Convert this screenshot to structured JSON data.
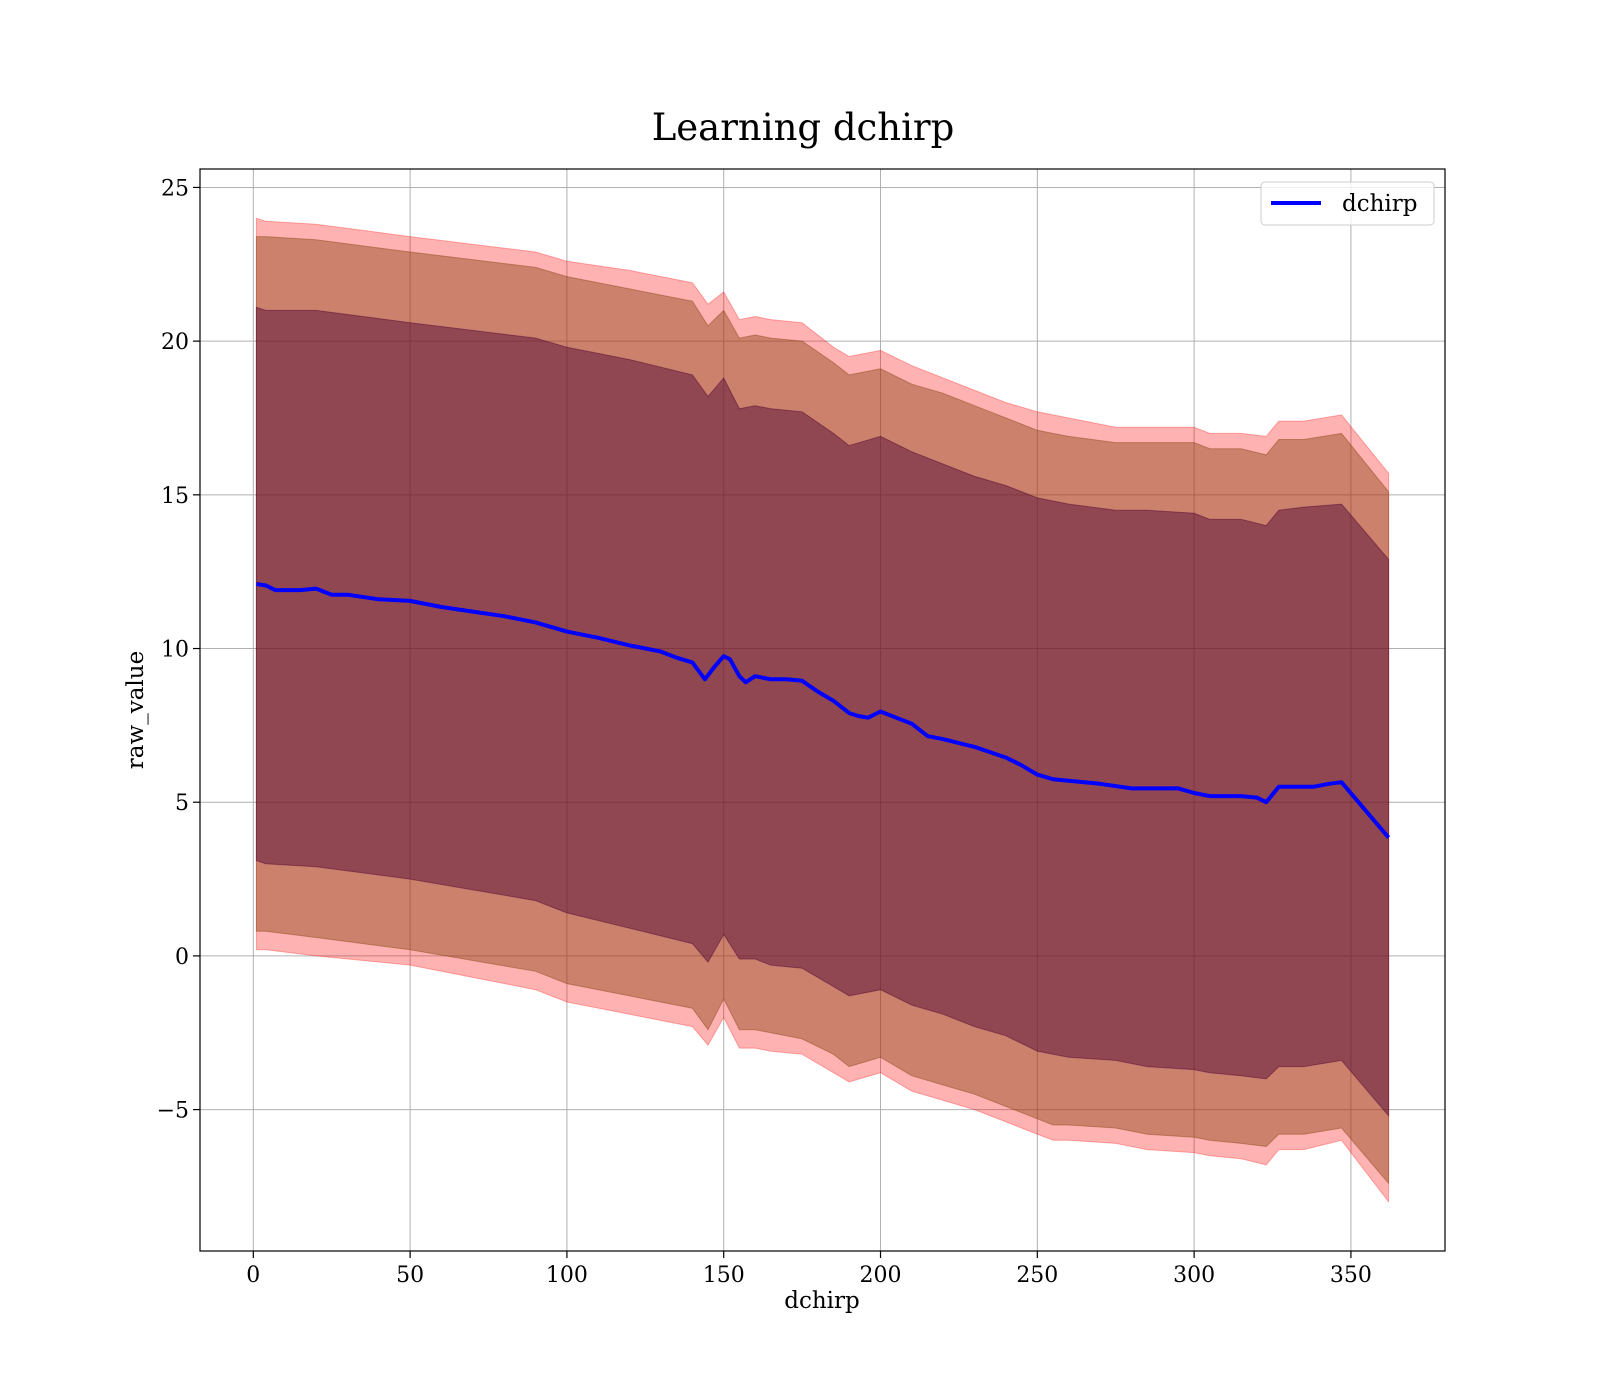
{
  "chart_data": {
    "type": "line",
    "title": "Learning dchirp",
    "xlabel": "dchirp",
    "ylabel": "raw_value",
    "xlim": [
      -17,
      380
    ],
    "ylim": [
      -9.6,
      25.6
    ],
    "x_ticks": [
      0,
      50,
      100,
      150,
      200,
      250,
      300,
      350
    ],
    "y_ticks": [
      -5,
      0,
      5,
      10,
      15,
      20,
      25
    ],
    "x_tick_labels": [
      "0",
      "50",
      "100",
      "150",
      "200",
      "250",
      "300",
      "350"
    ],
    "y_tick_labels": [
      "−5",
      "0",
      "5",
      "10",
      "15",
      "20",
      "25"
    ],
    "grid": true,
    "legend": {
      "position": "top-right",
      "entries": [
        "dchirp"
      ]
    },
    "series": [
      {
        "name": "dchirp",
        "color": "#0000ff",
        "x": [
          1,
          4,
          7,
          10,
          15,
          20,
          25,
          30,
          40,
          50,
          60,
          70,
          80,
          85,
          90,
          100,
          110,
          120,
          130,
          135,
          140,
          144,
          147,
          150,
          152,
          155,
          157,
          160,
          165,
          170,
          175,
          180,
          185,
          190,
          193,
          196,
          200,
          205,
          210,
          215,
          220,
          230,
          240,
          245,
          250,
          255,
          260,
          270,
          280,
          290,
          295,
          300,
          305,
          310,
          315,
          320,
          323,
          327,
          330,
          338,
          343,
          347,
          362
        ],
        "y": [
          12.1,
          12.05,
          11.9,
          11.9,
          11.9,
          11.95,
          11.75,
          11.75,
          11.6,
          11.55,
          11.35,
          11.2,
          11.05,
          10.95,
          10.85,
          10.55,
          10.35,
          10.1,
          9.9,
          9.7,
          9.55,
          9.0,
          9.4,
          9.75,
          9.65,
          9.1,
          8.9,
          9.1,
          9.0,
          9.0,
          8.95,
          8.6,
          8.3,
          7.9,
          7.8,
          7.75,
          7.95,
          7.75,
          7.55,
          7.15,
          7.05,
          6.8,
          6.45,
          6.2,
          5.9,
          5.75,
          5.7,
          5.6,
          5.45,
          5.45,
          5.45,
          5.3,
          5.2,
          5.2,
          5.2,
          5.15,
          5.0,
          5.5,
          5.5,
          5.5,
          5.6,
          5.65,
          3.85
        ]
      }
    ],
    "bands": [
      {
        "color": "#ff0000",
        "opacity": 0.3,
        "x": [
          1,
          4,
          20,
          50,
          90,
          100,
          120,
          140,
          145,
          150,
          155,
          160,
          165,
          175,
          185,
          190,
          200,
          210,
          220,
          230,
          240,
          250,
          255,
          260,
          275,
          285,
          300,
          305,
          315,
          323,
          327,
          335,
          347,
          362
        ],
        "upper": [
          24.0,
          23.9,
          23.8,
          23.4,
          22.9,
          22.6,
          22.3,
          21.9,
          21.2,
          21.6,
          20.7,
          20.8,
          20.7,
          20.6,
          19.8,
          19.5,
          19.7,
          19.2,
          18.8,
          18.4,
          18.0,
          17.7,
          17.6,
          17.5,
          17.2,
          17.2,
          17.2,
          17.0,
          17.0,
          16.9,
          17.4,
          17.4,
          17.6,
          15.7
        ],
        "lower": [
          0.2,
          0.2,
          0.0,
          -0.3,
          -1.1,
          -1.5,
          -1.9,
          -2.3,
          -2.9,
          -2.0,
          -3.0,
          -3.0,
          -3.1,
          -3.2,
          -3.8,
          -4.1,
          -3.8,
          -4.4,
          -4.7,
          -5.0,
          -5.4,
          -5.8,
          -6.0,
          -6.0,
          -6.1,
          -6.3,
          -6.4,
          -6.5,
          -6.6,
          -6.8,
          -6.3,
          -6.3,
          -6.0,
          -8.0
        ]
      },
      {
        "color": "#8b4513",
        "opacity": 0.45,
        "x": [
          1,
          4,
          20,
          50,
          90,
          100,
          120,
          140,
          145,
          150,
          155,
          160,
          165,
          175,
          185,
          190,
          200,
          210,
          220,
          230,
          240,
          250,
          255,
          260,
          275,
          285,
          300,
          305,
          315,
          323,
          327,
          335,
          347,
          362
        ],
        "upper": [
          23.4,
          23.4,
          23.3,
          22.9,
          22.4,
          22.1,
          21.7,
          21.3,
          20.5,
          21.0,
          20.1,
          20.2,
          20.1,
          20.0,
          19.3,
          18.9,
          19.1,
          18.6,
          18.3,
          17.9,
          17.5,
          17.1,
          17.0,
          16.9,
          16.7,
          16.7,
          16.7,
          16.5,
          16.5,
          16.3,
          16.8,
          16.8,
          17.0,
          15.1
        ],
        "lower": [
          0.8,
          0.8,
          0.6,
          0.2,
          -0.5,
          -0.9,
          -1.3,
          -1.7,
          -2.4,
          -1.4,
          -2.4,
          -2.4,
          -2.5,
          -2.7,
          -3.2,
          -3.6,
          -3.3,
          -3.9,
          -4.2,
          -4.5,
          -4.9,
          -5.3,
          -5.5,
          -5.5,
          -5.6,
          -5.8,
          -5.9,
          -6.0,
          -6.1,
          -6.2,
          -5.8,
          -5.8,
          -5.6,
          -7.4
        ]
      },
      {
        "color": "#4b0033",
        "opacity": 0.45,
        "x": [
          1,
          4,
          20,
          50,
          90,
          100,
          120,
          140,
          145,
          150,
          155,
          160,
          165,
          175,
          185,
          190,
          200,
          210,
          220,
          230,
          240,
          250,
          255,
          260,
          275,
          285,
          300,
          305,
          315,
          323,
          327,
          335,
          347,
          362
        ],
        "upper": [
          21.1,
          21.0,
          21.0,
          20.6,
          20.1,
          19.8,
          19.4,
          18.9,
          18.2,
          18.8,
          17.8,
          17.9,
          17.8,
          17.7,
          17.0,
          16.6,
          16.9,
          16.4,
          16.0,
          15.6,
          15.3,
          14.9,
          14.8,
          14.7,
          14.5,
          14.5,
          14.4,
          14.2,
          14.2,
          14.0,
          14.5,
          14.6,
          14.7,
          12.9
        ],
        "lower": [
          3.1,
          3.0,
          2.9,
          2.5,
          1.8,
          1.4,
          0.9,
          0.4,
          -0.2,
          0.7,
          -0.1,
          -0.1,
          -0.3,
          -0.4,
          -1.0,
          -1.3,
          -1.1,
          -1.6,
          -1.9,
          -2.3,
          -2.6,
          -3.1,
          -3.2,
          -3.3,
          -3.4,
          -3.6,
          -3.7,
          -3.8,
          -3.9,
          -4.0,
          -3.6,
          -3.6,
          -3.4,
          -5.2
        ]
      }
    ]
  }
}
